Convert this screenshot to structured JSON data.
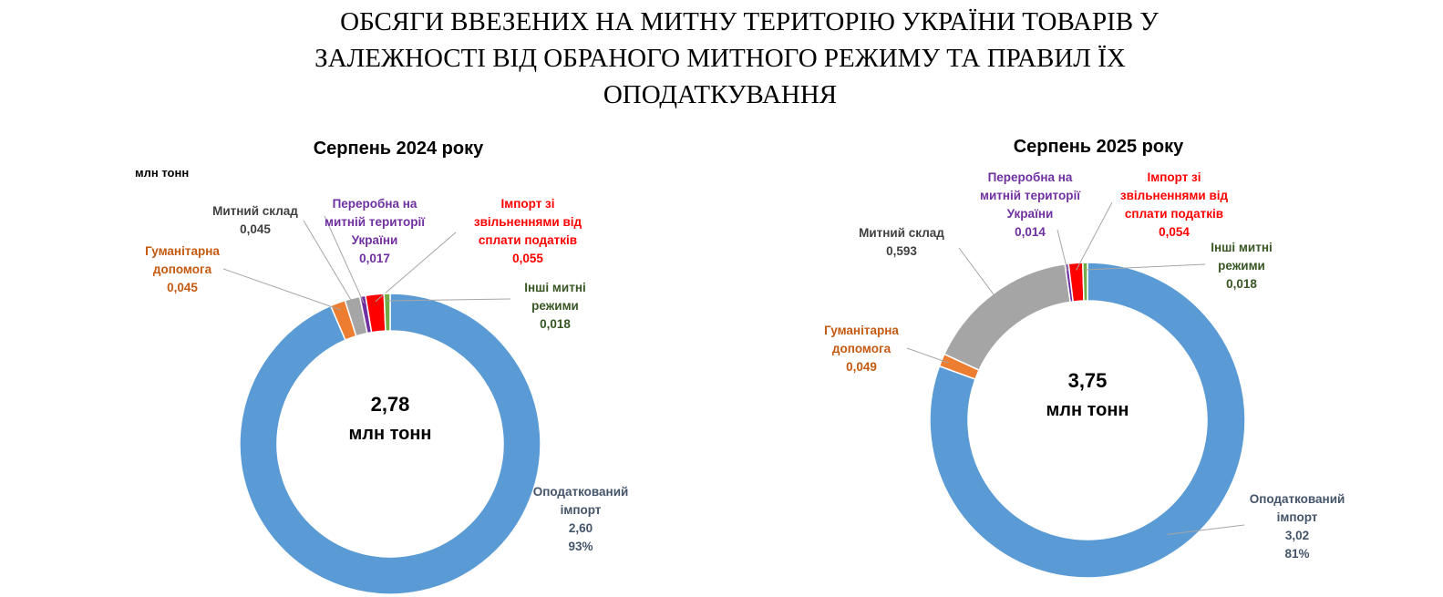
{
  "page_title": "ОБСЯГИ ВВЕЗЕНИХ НА МИТНУ ТЕРИТОРІЮ УКРАЇНИ ТОВАРІВ У ЗАЛЕЖНОСТІ ВІД ОБРАНОГО МИТНОГО РЕЖИМУ ТА ПРАВИЛ ЇХ ОПОДАТКУВАННЯ",
  "chart_data": [
    {
      "type": "pie",
      "donut": true,
      "title": "Серпень 2024 року",
      "unit_note": "млн тонн",
      "categories": [
        "Оподаткований імпорт",
        "Гуманітарна допомога",
        "Митний склад",
        "Переробна на митній території України",
        "Імпорт зі звільненнями від сплати податків",
        "Інші митні режими"
      ],
      "values": [
        2.6,
        0.045,
        0.045,
        0.017,
        0.055,
        0.018
      ],
      "value_labels": [
        "2,60",
        "0,045",
        "0,045",
        "0,017",
        "0,055",
        "0,018"
      ],
      "percents": [
        93,
        null,
        null,
        null,
        null,
        null
      ],
      "percent_labels": [
        "93%",
        null,
        null,
        null,
        null,
        null
      ],
      "colors": [
        "#5b9bd5",
        "#ed7d31",
        "#a5a5a5",
        "#7030a0",
        "#ff0000",
        "#70ad47"
      ],
      "label_colors": [
        "#44546a",
        "#c55a11",
        "#404040",
        "#7030a0",
        "#ff0000",
        "#375623"
      ],
      "center": {
        "value": 2.78,
        "label": "2,78"
      },
      "center_unit": "млн тонн"
    },
    {
      "type": "pie",
      "donut": true,
      "title": "Серпень 2025  року",
      "categories": [
        "Оподаткований імпорт",
        "Гуманітарна допомога",
        "Митний склад",
        "Переробна на митній території України",
        "Імпорт зі звільненнями від сплати податків",
        "Інші митні режими"
      ],
      "values": [
        3.02,
        0.049,
        0.593,
        0.014,
        0.054,
        0.018
      ],
      "value_labels": [
        "3,02",
        "0,049",
        "0,593",
        "0,014",
        "0,054",
        "0,018"
      ],
      "percents": [
        81,
        null,
        null,
        null,
        null,
        null
      ],
      "percent_labels": [
        "81%",
        null,
        null,
        null,
        null,
        null
      ],
      "colors": [
        "#5b9bd5",
        "#ed7d31",
        "#a5a5a5",
        "#7030a0",
        "#ff0000",
        "#70ad47"
      ],
      "label_colors": [
        "#44546a",
        "#c55a11",
        "#404040",
        "#7030a0",
        "#ff0000",
        "#375623"
      ],
      "center": {
        "value": 3.75,
        "label": "3,75"
      },
      "center_unit": "млн тонн"
    }
  ]
}
